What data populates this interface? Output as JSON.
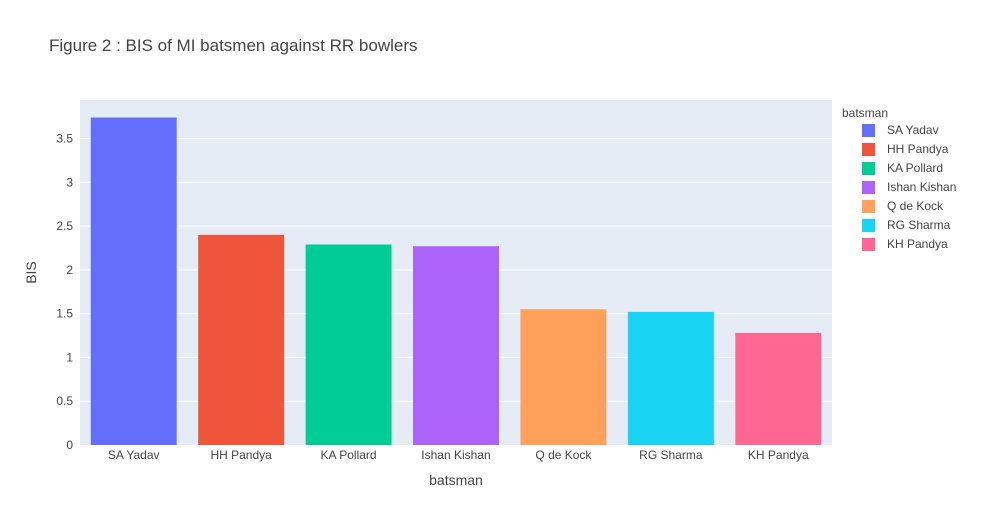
{
  "chart_data": {
    "type": "bar",
    "title": "Figure 2 : BIS of MI batsmen against RR bowlers",
    "xlabel": "batsman",
    "ylabel": "BIS",
    "ylim": [
      0,
      3.94
    ],
    "yticks": [
      "0",
      "0.5",
      "1",
      "1.5",
      "2",
      "2.5",
      "3",
      "3.5"
    ],
    "grid": true,
    "legend_position": "right",
    "legend_title": "batsman",
    "categories": [
      "SA Yadav",
      "HH Pandya",
      "KA Pollard",
      "Ishan Kishan",
      "Q de Kock",
      "RG Sharma",
      "KH Pandya"
    ],
    "values": [
      3.74,
      2.4,
      2.29,
      2.27,
      1.55,
      1.52,
      1.28
    ],
    "colors": [
      "#636efa",
      "#ef553b",
      "#00cc96",
      "#ab63fa",
      "#ffa15a",
      "#19d3f3",
      "#ff6692"
    ],
    "plot_background": "#e5ecf6"
  }
}
